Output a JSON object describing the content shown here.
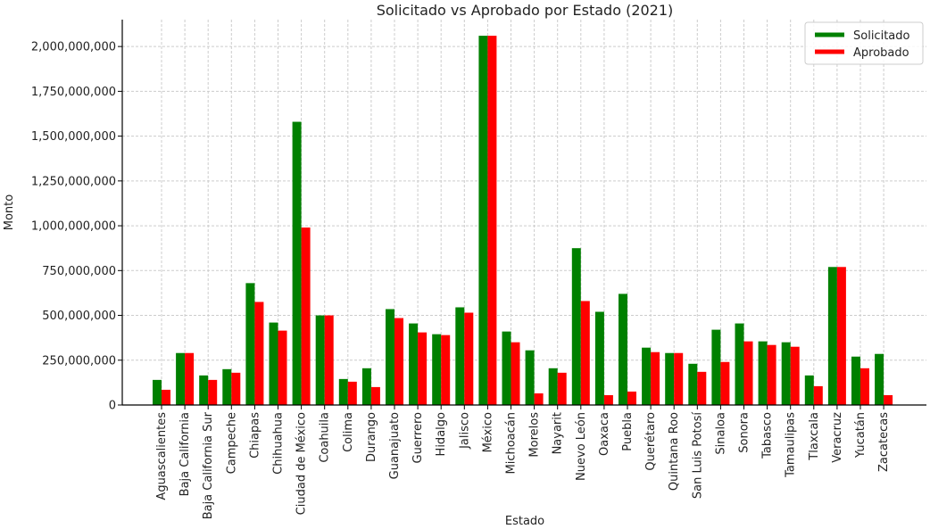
{
  "chart_data": {
    "type": "bar",
    "title": "Solicitado vs Aprobado por Estado (2021)",
    "xlabel": "Estado",
    "ylabel": "Monto",
    "ylim": [
      0,
      2150000000
    ],
    "yticks": [
      0,
      250000000,
      500000000,
      750000000,
      1000000000,
      1250000000,
      1500000000,
      1750000000,
      2000000000
    ],
    "ytick_labels": [
      "0",
      "250,000,000",
      "500,000,000",
      "750,000,000",
      "1,000,000,000",
      "1,250,000,000",
      "1,500,000,000",
      "1,750,000,000",
      "2,000,000,000"
    ],
    "grid": true,
    "legend_position": "top-right",
    "categories": [
      "Aguascalientes",
      "Baja California",
      "Baja California Sur",
      "Campeche",
      "Chiapas",
      "Chihuahua",
      "Ciudad de México",
      "Coahuila",
      "Colima",
      "Durango",
      "Guanajuato",
      "Guerrero",
      "Hidalgo",
      "Jalisco",
      "México",
      "Michoacán",
      "Morelos",
      "Nayarit",
      "Nuevo León",
      "Oaxaca",
      "Puebla",
      "Querétaro",
      "Quintana Roo",
      "San Luis Potosí",
      "Sinaloa",
      "Sonora",
      "Tabasco",
      "Tamaulipas",
      "Tlaxcala",
      "Veracruz",
      "Yucatán",
      "Zacatecas"
    ],
    "series": [
      {
        "name": "Solicitado",
        "color": "#008000",
        "values": [
          140000000,
          290000000,
          165000000,
          200000000,
          680000000,
          460000000,
          1580000000,
          500000000,
          145000000,
          205000000,
          535000000,
          455000000,
          395000000,
          545000000,
          2060000000,
          410000000,
          305000000,
          205000000,
          875000000,
          520000000,
          620000000,
          320000000,
          290000000,
          230000000,
          420000000,
          455000000,
          355000000,
          350000000,
          165000000,
          770000000,
          270000000,
          285000000
        ]
      },
      {
        "name": "Aprobado",
        "color": "#ff0000",
        "values": [
          85000000,
          290000000,
          140000000,
          180000000,
          575000000,
          415000000,
          990000000,
          500000000,
          130000000,
          100000000,
          485000000,
          405000000,
          390000000,
          515000000,
          2060000000,
          350000000,
          65000000,
          180000000,
          580000000,
          55000000,
          75000000,
          295000000,
          290000000,
          185000000,
          240000000,
          355000000,
          335000000,
          325000000,
          105000000,
          770000000,
          205000000,
          55000000
        ]
      }
    ]
  }
}
